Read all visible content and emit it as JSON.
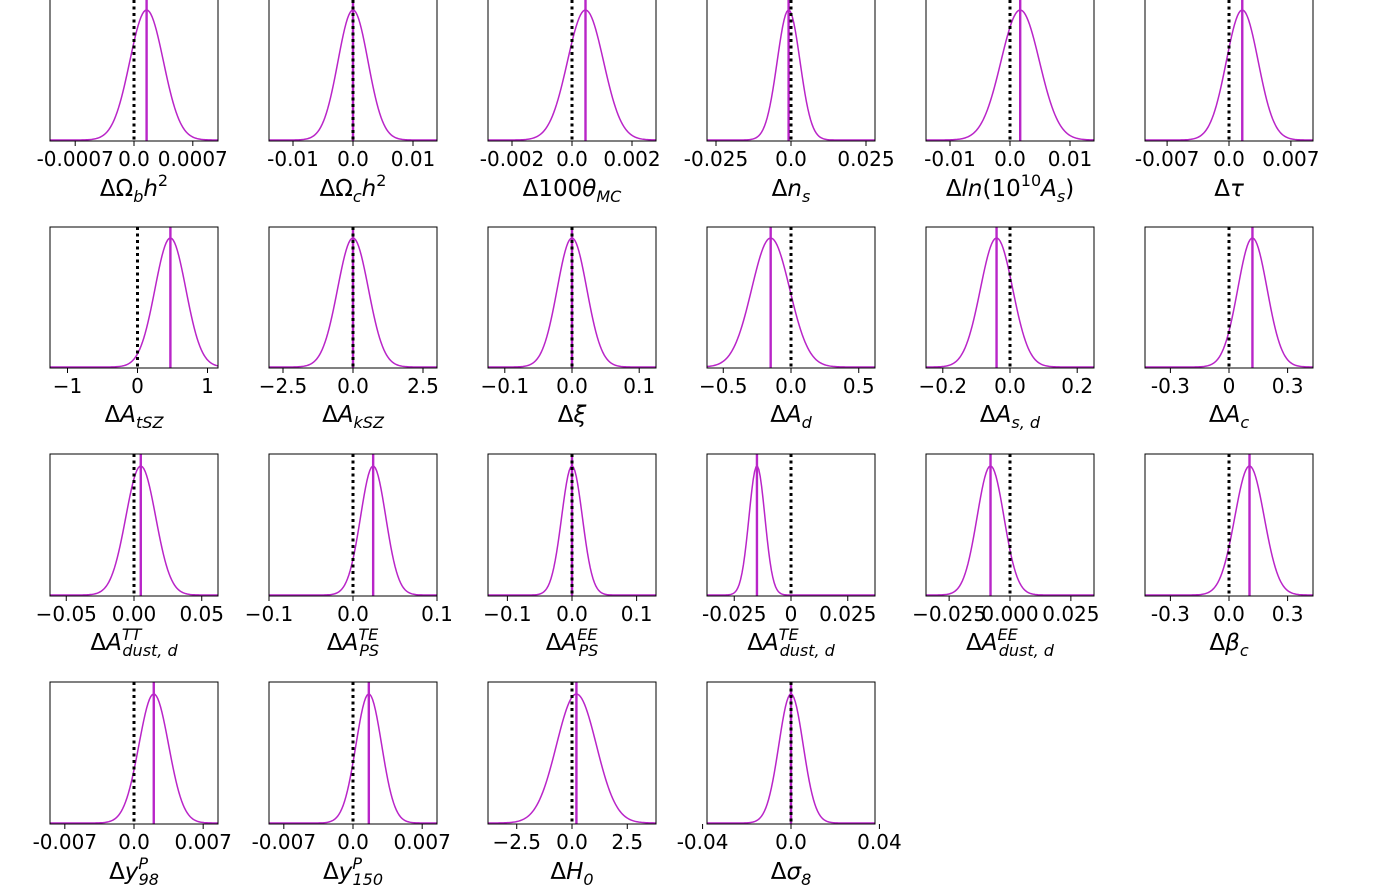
{
  "colors": {
    "curve": "#b925c8",
    "mean_line": "#b925c8",
    "reference_line": "#000000",
    "frame": "#000000",
    "background": "#ffffff"
  },
  "chart_data": [
    {
      "type": "line",
      "label": {
        "pre": "ΔΩ",
        "parts": [
          [
            "b",
            "sub"
          ],
          [
            "h",
            ""
          ],
          [
            "2",
            "sup"
          ]
        ]
      },
      "xlim": [
        -0.001,
        0.001
      ],
      "ticks": [
        -0.0007,
        0,
        0.0007
      ],
      "tick_labels": [
        "-0.0007",
        "0.0",
        "0.0007"
      ],
      "mean": 0.00015,
      "sigma": 0.0002,
      "reference": 0.0
    },
    {
      "type": "line",
      "label": {
        "pre": "ΔΩ",
        "parts": [
          [
            "c",
            "sub"
          ],
          [
            "h",
            ""
          ],
          [
            "2",
            "sup"
          ]
        ]
      },
      "xlim": [
        -0.014,
        0.014
      ],
      "ticks": [
        -0.01,
        0,
        0.01
      ],
      "tick_labels": [
        "-0.01",
        "0.0",
        "0.01"
      ],
      "mean": 0.0,
      "sigma": 0.0025,
      "reference": 0.0
    },
    {
      "type": "line",
      "label": {
        "pre": "Δ100",
        "parts": [
          [
            "θ",
            ""
          ],
          [
            "MC",
            "sub"
          ]
        ]
      },
      "xlim": [
        -0.0028,
        0.0028
      ],
      "ticks": [
        -0.002,
        0,
        0.002
      ],
      "tick_labels": [
        "-0.002",
        "0.0",
        "0.002"
      ],
      "mean": 0.00045,
      "sigma": 0.0006,
      "reference": 0.0
    },
    {
      "type": "line",
      "label": {
        "pre": "Δ",
        "parts": [
          [
            "n",
            ""
          ],
          [
            "s",
            "sub"
          ]
        ]
      },
      "xlim": [
        -0.028,
        0.028
      ],
      "ticks": [
        -0.025,
        0,
        0.025
      ],
      "tick_labels": [
        "-0.025",
        "0.0",
        "0.025"
      ],
      "mean": -0.0008,
      "sigma": 0.0038,
      "reference": 0.0
    },
    {
      "type": "line",
      "label": {
        "pre": "Δ",
        "parts": [
          [
            "ln",
            ""
          ],
          [
            "(10",
            ""
          ],
          [
            "10",
            "sup"
          ],
          [
            "A",
            ""
          ],
          [
            "s",
            "sub"
          ],
          [
            ")",
            ""
          ]
        ]
      },
      "xlim": [
        -0.014,
        0.014
      ],
      "ticks": [
        -0.01,
        0,
        0.01
      ],
      "tick_labels": [
        "-0.01",
        "0.0",
        "0.01"
      ],
      "mean": 0.0017,
      "sigma": 0.0032,
      "reference": 0.0
    },
    {
      "type": "line",
      "label": {
        "pre": "Δ",
        "parts": [
          [
            "τ",
            ""
          ]
        ]
      },
      "xlim": [
        -0.0095,
        0.0095
      ],
      "ticks": [
        -0.007,
        0,
        0.007
      ],
      "tick_labels": [
        "-0.007",
        "0.0",
        "0.007"
      ],
      "mean": 0.0015,
      "sigma": 0.0018,
      "reference": 0.0
    },
    {
      "type": "line",
      "label": {
        "pre": "Δ",
        "parts": [
          [
            "A",
            ""
          ],
          [
            "tSZ",
            "sub"
          ]
        ]
      },
      "xlim": [
        -1.25,
        1.15
      ],
      "ticks": [
        -1,
        0,
        1
      ],
      "tick_labels": [
        "−1",
        "0",
        "1"
      ],
      "mean": 0.47,
      "sigma": 0.22,
      "reference": 0.0
    },
    {
      "type": "line",
      "label": {
        "pre": "Δ",
        "parts": [
          [
            "A",
            ""
          ],
          [
            "kSZ",
            "sub"
          ]
        ]
      },
      "xlim": [
        -3.0,
        3.0
      ],
      "ticks": [
        -2.5,
        0,
        2.5
      ],
      "tick_labels": [
        "−2.5",
        "0.0",
        "2.5"
      ],
      "mean": 0.0,
      "sigma": 0.55,
      "reference": 0.0
    },
    {
      "type": "line",
      "label": {
        "pre": "Δ",
        "parts": [
          [
            "ξ",
            ""
          ]
        ]
      },
      "xlim": [
        -0.125,
        0.125
      ],
      "ticks": [
        -0.1,
        0,
        0.1
      ],
      "tick_labels": [
        "−0.1",
        "0.0",
        "0.1"
      ],
      "mean": 0.0,
      "sigma": 0.022,
      "reference": 0.0
    },
    {
      "type": "line",
      "label": {
        "pre": "Δ",
        "parts": [
          [
            "A",
            ""
          ],
          [
            "d",
            "sub"
          ]
        ]
      },
      "xlim": [
        -0.62,
        0.62
      ],
      "ticks": [
        -0.5,
        0,
        0.5
      ],
      "tick_labels": [
        "−0.5",
        "0.0",
        "0.5"
      ],
      "mean": -0.15,
      "sigma": 0.14,
      "reference": 0.0
    },
    {
      "type": "line",
      "label": {
        "pre": "Δ",
        "parts": [
          [
            "A",
            ""
          ],
          [
            "s, d",
            "sub"
          ]
        ]
      },
      "xlim": [
        -0.25,
        0.25
      ],
      "ticks": [
        -0.2,
        0,
        0.2
      ],
      "tick_labels": [
        "−0.2",
        "0.0",
        "0.2"
      ],
      "mean": -0.04,
      "sigma": 0.048,
      "reference": 0.0
    },
    {
      "type": "line",
      "label": {
        "pre": "Δ",
        "parts": [
          [
            "A",
            ""
          ],
          [
            "c",
            "sub"
          ]
        ]
      },
      "xlim": [
        -0.43,
        0.43
      ],
      "ticks": [
        -0.3,
        0,
        0.3
      ],
      "tick_labels": [
        "-0.3",
        "0",
        "0.3"
      ],
      "mean": 0.12,
      "sigma": 0.075,
      "reference": 0.0
    },
    {
      "type": "line",
      "label": {
        "pre": "Δ",
        "parts": [
          [
            "A",
            ""
          ],
          [
            "dust, d",
            "subsup",
            "TT"
          ]
        ]
      },
      "xlim": [
        -0.062,
        0.062
      ],
      "ticks": [
        -0.05,
        0,
        0.05
      ],
      "tick_labels": [
        "−0.05",
        "0.00",
        "0.05"
      ],
      "mean": 0.005,
      "sigma": 0.011,
      "reference": 0.0
    },
    {
      "type": "line",
      "label": {
        "pre": "Δ",
        "parts": [
          [
            "A",
            ""
          ],
          [
            "PS",
            "subsup",
            "TE"
          ]
        ]
      },
      "xlim": [
        -0.1,
        0.1
      ],
      "ticks": [
        -0.1,
        0,
        0.1
      ],
      "tick_labels": [
        "−0.1",
        "0.0",
        "0.1"
      ],
      "mean": 0.024,
      "sigma": 0.015,
      "reference": 0.0
    },
    {
      "type": "line",
      "label": {
        "pre": "Δ",
        "parts": [
          [
            "A",
            ""
          ],
          [
            "PS",
            "subsup",
            "EE"
          ]
        ]
      },
      "xlim": [
        -0.13,
        0.13
      ],
      "ticks": [
        -0.1,
        0,
        0.1
      ],
      "tick_labels": [
        "−0.1",
        "0.0",
        "0.1"
      ],
      "mean": 0.0,
      "sigma": 0.016,
      "reference": 0.0
    },
    {
      "type": "line",
      "label": {
        "pre": "Δ",
        "parts": [
          [
            "A",
            ""
          ],
          [
            "dust, d",
            "subsup",
            "TE"
          ]
        ]
      },
      "xlim": [
        -0.037,
        0.037
      ],
      "ticks": [
        -0.025,
        0,
        0.025
      ],
      "tick_labels": [
        "-0.025",
        "0",
        "0.025"
      ],
      "mean": -0.015,
      "sigma": 0.0035,
      "reference": 0.0
    },
    {
      "type": "line",
      "label": {
        "pre": "Δ",
        "parts": [
          [
            "A",
            ""
          ],
          [
            "dust, d",
            "subsup",
            "EE"
          ]
        ]
      },
      "xlim": [
        -0.0345,
        0.0345
      ],
      "ticks": [
        -0.025,
        0,
        0.025
      ],
      "tick_labels": [
        "−0.025",
        "0.000",
        "0.025"
      ],
      "mean": -0.008,
      "sigma": 0.0055,
      "reference": 0.0
    },
    {
      "type": "line",
      "label": {
        "pre": "Δ",
        "parts": [
          [
            "β",
            ""
          ],
          [
            "c",
            "sub"
          ]
        ]
      },
      "xlim": [
        -0.43,
        0.43
      ],
      "ticks": [
        -0.3,
        0,
        0.3
      ],
      "tick_labels": [
        "-0.3",
        "0.0",
        "0.3"
      ],
      "mean": 0.105,
      "sigma": 0.075,
      "reference": 0.0
    },
    {
      "type": "line",
      "label": {
        "pre": "Δ",
        "parts": [
          [
            "y",
            ""
          ],
          [
            "98",
            "subsup",
            "P"
          ]
        ]
      },
      "xlim": [
        -0.0085,
        0.0085
      ],
      "ticks": [
        -0.007,
        0,
        0.007
      ],
      "tick_labels": [
        "-0.007",
        "0.0",
        "0.007"
      ],
      "mean": 0.002,
      "sigma": 0.0015,
      "reference": 0.0
    },
    {
      "type": "line",
      "label": {
        "pre": "Δ",
        "parts": [
          [
            "y",
            ""
          ],
          [
            "150",
            "subsup",
            "P"
          ]
        ]
      },
      "xlim": [
        -0.0085,
        0.0085
      ],
      "ticks": [
        -0.007,
        0,
        0.007
      ],
      "tick_labels": [
        "-0.007",
        "0.0",
        "0.007"
      ],
      "mean": 0.0016,
      "sigma": 0.0013,
      "reference": 0.0
    },
    {
      "type": "line",
      "label": {
        "pre": "Δ",
        "parts": [
          [
            "H",
            ""
          ],
          [
            "0",
            "sub"
          ]
        ]
      },
      "xlim": [
        -3.8,
        3.8
      ],
      "ticks": [
        -2.5,
        0,
        2.5
      ],
      "tick_labels": [
        "−2.5",
        "0.0",
        "2.5"
      ],
      "mean": 0.2,
      "sigma": 0.9,
      "reference": 0.0
    },
    {
      "type": "line",
      "label": {
        "pre": "Δ",
        "parts": [
          [
            "σ",
            ""
          ],
          [
            "8",
            "sub"
          ]
        ]
      },
      "xlim": [
        -0.038,
        0.038
      ],
      "ticks": [
        -0.04,
        0,
        0.04
      ],
      "tick_labels": [
        "-0.04",
        "0.0",
        "0.04"
      ],
      "mean": 0.0,
      "sigma": 0.0055,
      "reference": 0.0
    }
  ]
}
